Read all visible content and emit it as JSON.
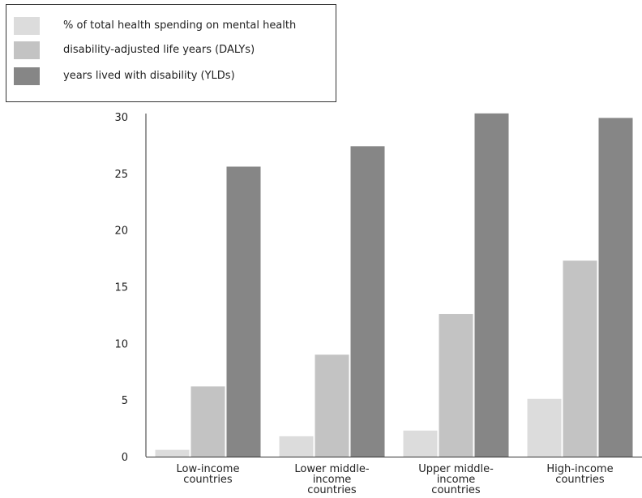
{
  "chart_data": {
    "type": "bar",
    "title": "",
    "xlabel": "",
    "ylabel": "",
    "ylim": [
      0,
      30
    ],
    "yticks": [
      0,
      5,
      10,
      15,
      20,
      25,
      30
    ],
    "grid": false,
    "legend_position": "top-left",
    "categories": [
      [
        "Low-income",
        "countries"
      ],
      [
        "Lower middle-",
        "income",
        "countries"
      ],
      [
        "Upper middle-",
        "income",
        "countries"
      ],
      [
        "High-income",
        "countries"
      ]
    ],
    "series": [
      {
        "name": "% of total health spending on mental health",
        "color": "#dcdcdc",
        "values": [
          0.6,
          1.8,
          2.3,
          5.1
        ]
      },
      {
        "name": "disability-adjusted life years (DALYs)",
        "color": "#c3c3c3",
        "values": [
          6.2,
          9.0,
          12.6,
          17.3
        ]
      },
      {
        "name": "years lived with disability (YLDs)",
        "color": "#868686",
        "values": [
          25.6,
          27.4,
          30.3,
          29.9
        ]
      }
    ]
  }
}
